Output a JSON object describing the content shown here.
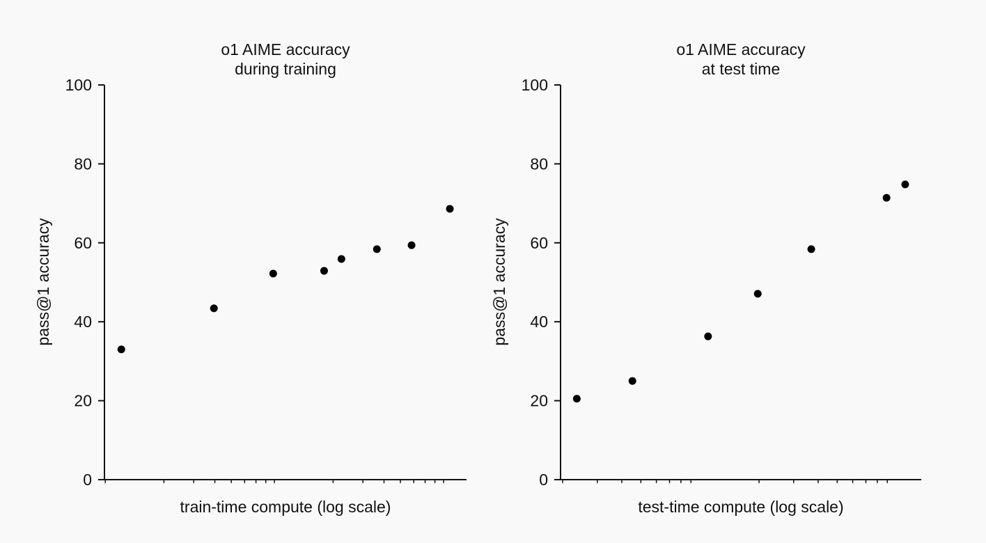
{
  "chart_data": [
    {
      "type": "scatter",
      "title": [
        "o1 AIME accuracy",
        "during training"
      ],
      "xlabel": "train-time compute (log scale)",
      "ylabel": "pass@1 accuracy",
      "xscale": "log",
      "xlim": [
        0.89,
        123
      ],
      "ylim": [
        0,
        100
      ],
      "yticks": [
        0,
        20,
        40,
        60,
        80,
        100
      ],
      "x_tick_labels": "none",
      "grid": false,
      "marker_color": "#000000",
      "points": [
        {
          "x": 1.12,
          "y": 33
        },
        {
          "x": 3.95,
          "y": 43.4
        },
        {
          "x": 8.85,
          "y": 52.2
        },
        {
          "x": 17.7,
          "y": 52.9
        },
        {
          "x": 22.4,
          "y": 55.9
        },
        {
          "x": 36.3,
          "y": 58.4
        },
        {
          "x": 58.2,
          "y": 59.4
        },
        {
          "x": 98,
          "y": 68.6
        }
      ]
    },
    {
      "type": "scatter",
      "title": [
        "o1 AIME accuracy",
        "at test time"
      ],
      "xlabel": "test-time compute (log scale)",
      "ylabel": "pass@1 accuracy",
      "xscale": "log",
      "xlim": [
        1.95,
        134
      ],
      "ylim": [
        0,
        100
      ],
      "yticks": [
        0,
        20,
        40,
        60,
        80,
        100
      ],
      "x_tick_labels": "none",
      "grid": false,
      "marker_color": "#000000",
      "points": [
        {
          "x": 2.36,
          "y": 20.5
        },
        {
          "x": 4.53,
          "y": 25.0
        },
        {
          "x": 11.0,
          "y": 36.3
        },
        {
          "x": 19.7,
          "y": 47.1
        },
        {
          "x": 36.9,
          "y": 58.4
        },
        {
          "x": 89.2,
          "y": 71.4
        },
        {
          "x": 111,
          "y": 74.8
        }
      ]
    }
  ]
}
